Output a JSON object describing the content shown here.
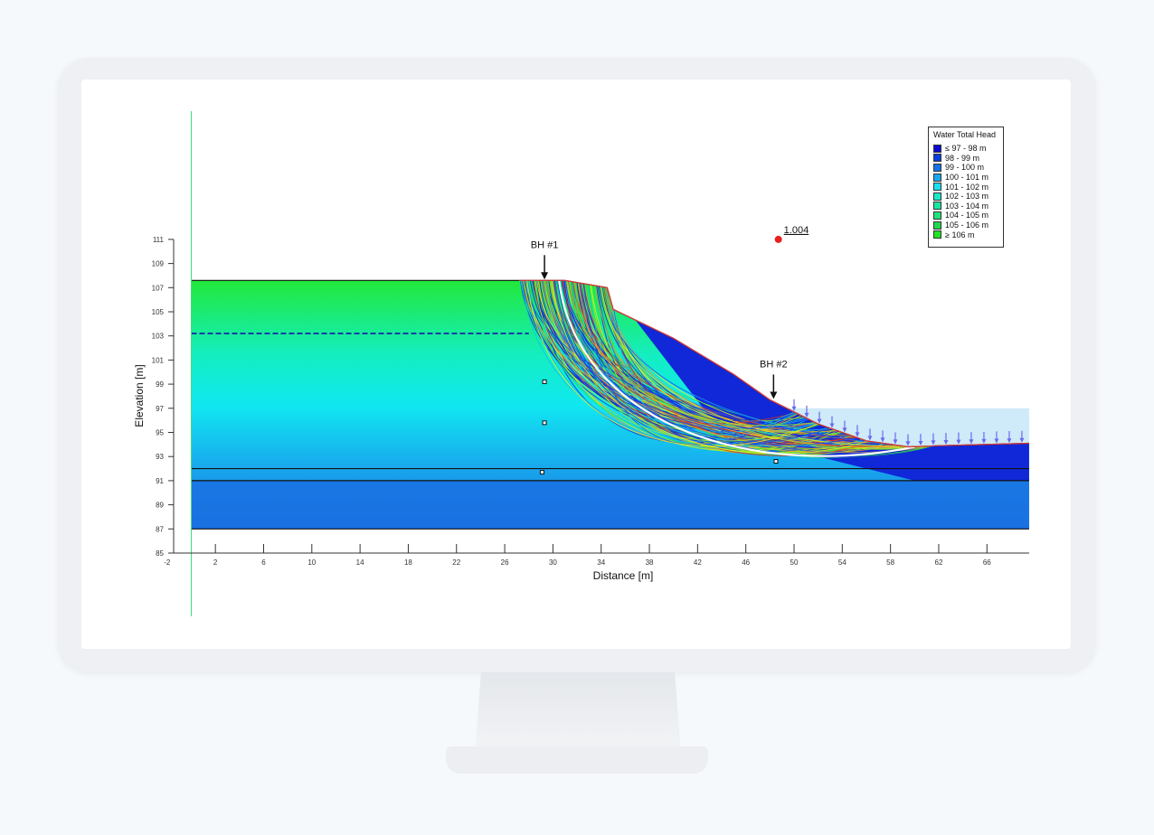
{
  "chart_data": {
    "type": "cross-section",
    "xlabel": "Distance [m]",
    "ylabel": "Elevation [m]",
    "xlim": [
      -2,
      69.5
    ],
    "ylim": [
      85,
      111
    ],
    "x_ticks": [
      -2,
      2,
      6,
      10,
      14,
      18,
      22,
      26,
      30,
      34,
      38,
      42,
      46,
      50,
      54,
      58,
      62,
      66
    ],
    "y_ticks": [
      85,
      87,
      89,
      91,
      93,
      95,
      97,
      99,
      101,
      103,
      105,
      107,
      109,
      111
    ],
    "ground_profile": [
      [
        0,
        107.6
      ],
      [
        27.2,
        107.6
      ],
      [
        31,
        107.6
      ],
      [
        34.5,
        107
      ],
      [
        35,
        105.2
      ],
      [
        40,
        102.8
      ],
      [
        45,
        99.8
      ],
      [
        48,
        97.7
      ],
      [
        52,
        95.7
      ],
      [
        56,
        94.3
      ],
      [
        59.5,
        93.8
      ],
      [
        62,
        93.9
      ],
      [
        69.5,
        94.1
      ]
    ],
    "layer_boundaries": [
      92,
      91,
      87
    ],
    "water_table": {
      "x": [
        0,
        28
      ],
      "elevation": 103.2
    },
    "ponded_water_elevation": 97,
    "boreholes": [
      {
        "label": "BH #1",
        "x": 29.3,
        "elevation": 107.6
      },
      {
        "label": "BH #2",
        "x": 48.3,
        "elevation": 97.7
      }
    ],
    "factor_of_safety": {
      "label": "1.004",
      "x": 48.7,
      "elevation": 111
    },
    "legend": {
      "title": "Water Total Head",
      "placement": "top-right",
      "entries": [
        {
          "label": "≤ 97 - 98 m",
          "color": "#0a0ad0"
        },
        {
          "label": "98 - 99 m",
          "color": "#0a3ee0"
        },
        {
          "label": "99 - 100 m",
          "color": "#1673e6"
        },
        {
          "label": "100 - 101 m",
          "color": "#1aa8ec"
        },
        {
          "label": "101 - 102 m",
          "color": "#1ae0f0"
        },
        {
          "label": "102 - 103 m",
          "color": "#19e8c8"
        },
        {
          "label": "103 - 104 m",
          "color": "#1ae6a0"
        },
        {
          "label": "104 - 105 m",
          "color": "#1de478"
        },
        {
          "label": "105 - 106 m",
          "color": "#1fd84a"
        },
        {
          "label": "≥ 106 m",
          "color": "#22e222"
        }
      ]
    }
  }
}
